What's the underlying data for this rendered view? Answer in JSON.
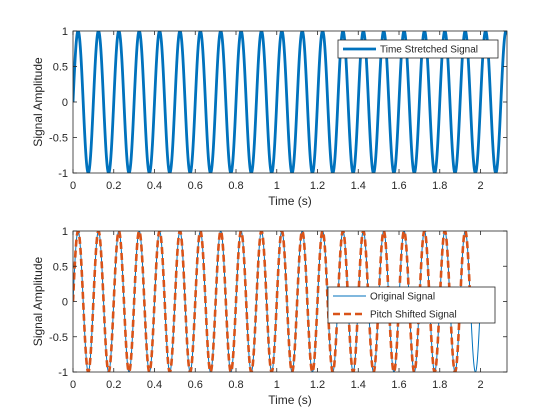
{
  "chart_data": [
    {
      "type": "line",
      "title": "",
      "xlabel": "Time (s)",
      "ylabel": "Signal Amplitude",
      "xlim": [
        0,
        2.13
      ],
      "ylim": [
        -1,
        1
      ],
      "xticks": [
        "0",
        "0.2",
        "0.4",
        "0.6",
        "0.8",
        "1",
        "1.2",
        "1.4",
        "1.6",
        "1.8",
        "2"
      ],
      "yticks": [
        "-1",
        "-0.5",
        "0",
        "0.5",
        "1"
      ],
      "grid": false,
      "legend": "top-right",
      "series": [
        {
          "name": "Time Stretched Signal",
          "function": "sine",
          "frequency_hz": 10,
          "amplitude": 1,
          "x_range": [
            0,
            2.13
          ],
          "color": "#0072BD",
          "style": "solid"
        }
      ]
    },
    {
      "type": "line",
      "title": "",
      "xlabel": "Time (s)",
      "ylabel": "Signal Amplitude",
      "xlim": [
        0,
        2.13
      ],
      "ylim": [
        -1,
        1
      ],
      "xticks": [
        "0",
        "0.2",
        "0.4",
        "0.6",
        "0.8",
        "1",
        "1.2",
        "1.4",
        "1.6",
        "1.8",
        "2"
      ],
      "yticks": [
        "-1",
        "-0.5",
        "0",
        "0.5",
        "1"
      ],
      "grid": false,
      "legend": "right",
      "series": [
        {
          "name": "Original Signal",
          "function": "sine",
          "frequency_hz": 10,
          "amplitude": 1,
          "x_range": [
            0,
            2.0
          ],
          "color": "#0072BD",
          "style": "solid"
        },
        {
          "name": "Pitch Shifted Signal",
          "function": "sine",
          "frequency_hz": 10,
          "amplitude": 1,
          "x_range": [
            0,
            1.95
          ],
          "color": "#D95319",
          "style": "dashed"
        }
      ]
    }
  ]
}
